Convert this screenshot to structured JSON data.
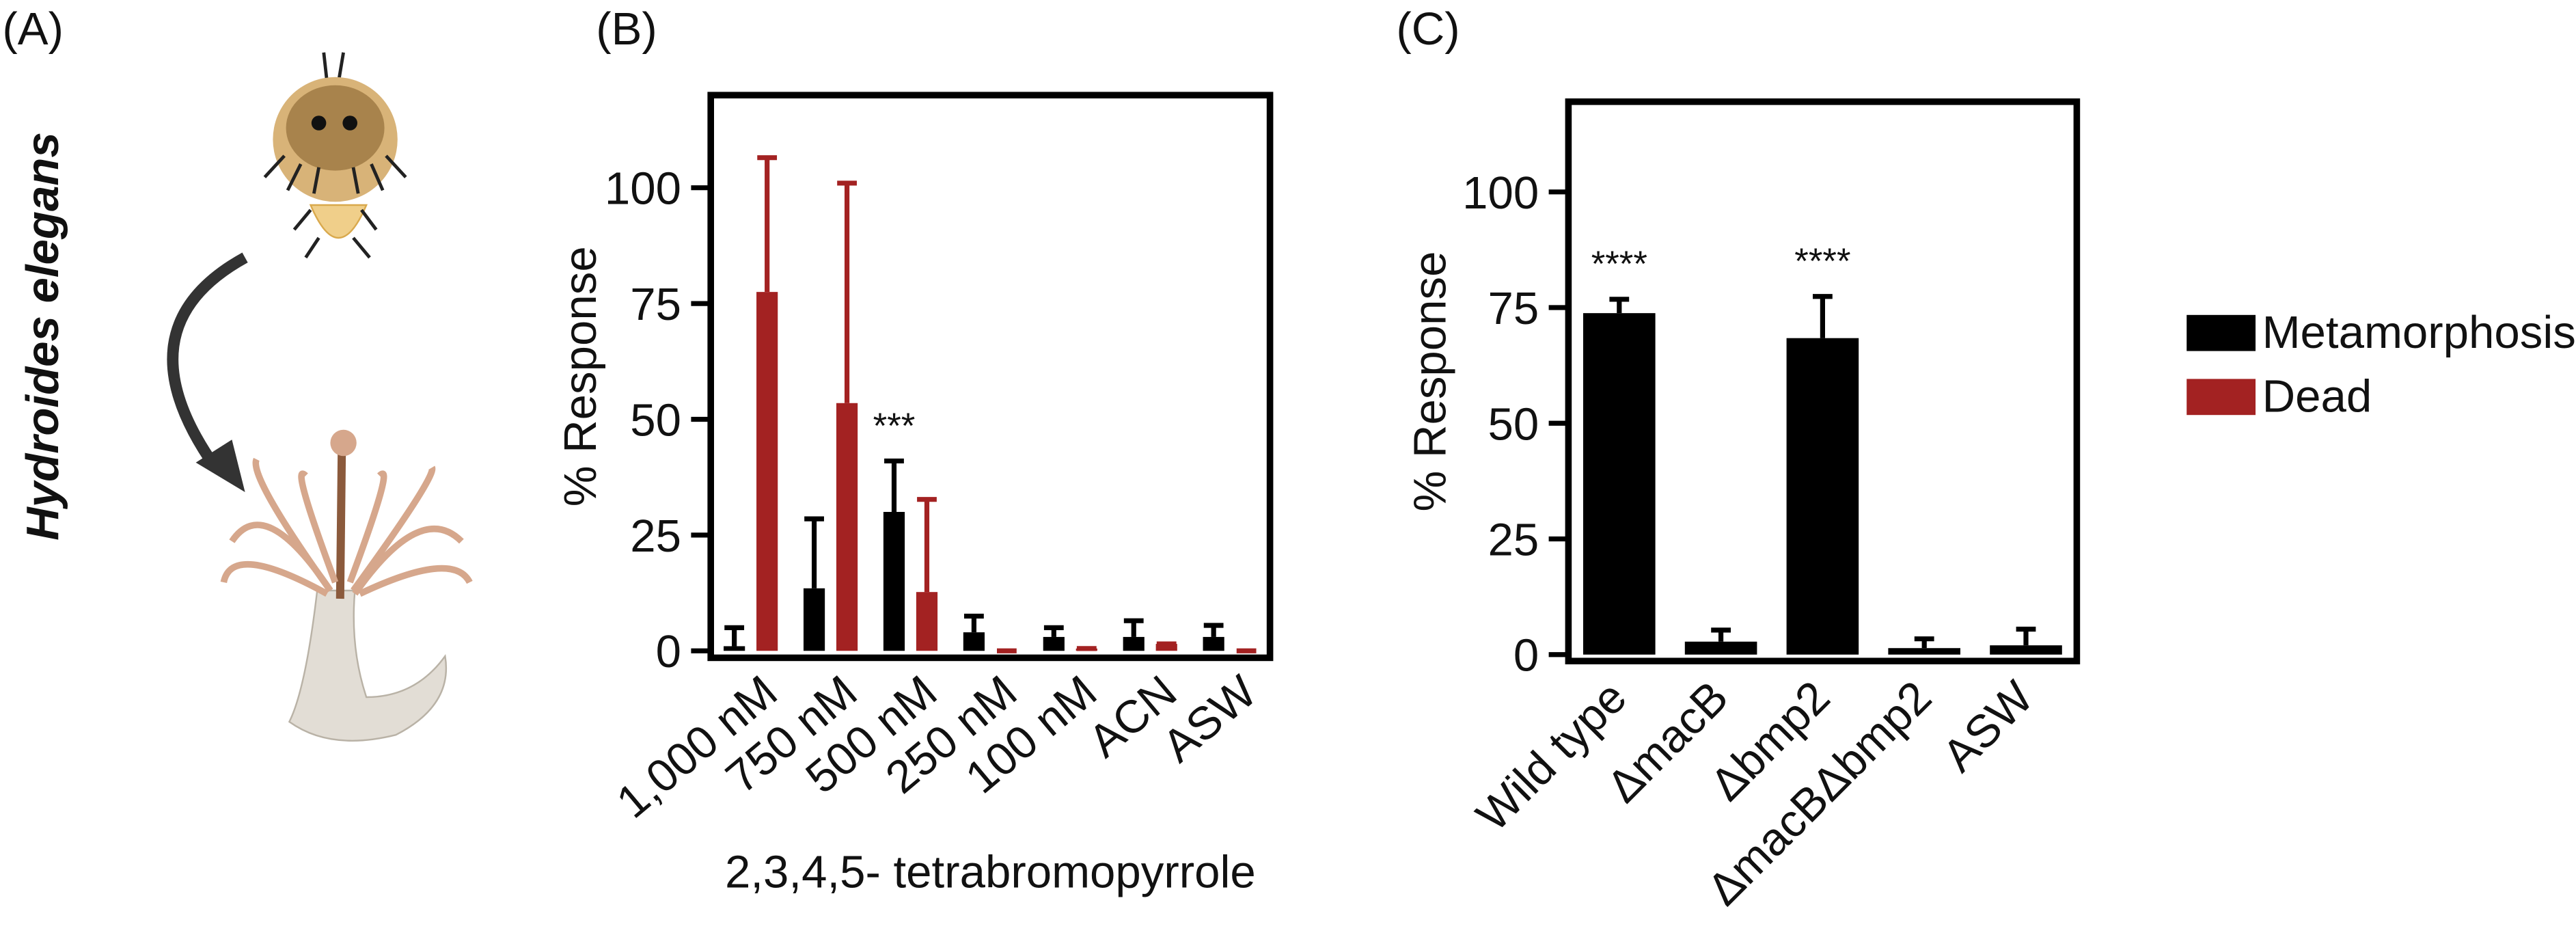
{
  "panel_labels": [
    "(A)",
    "(B)",
    "(C)"
  ],
  "organism": "Hydroides elegans",
  "chart_data": [
    {
      "type": "bar",
      "xlabel": "2,3,4,5- tetrabromopyrrole",
      "ylabel": "% Response",
      "categories": [
        "1,000 nM",
        "750 nM",
        "500 nM",
        "250 nM",
        "100 nM",
        "ACN",
        "ASW"
      ],
      "series": [
        {
          "name": "Metamorphosis",
          "color": "#000000",
          "values": [
            1,
            13.5,
            30,
            4,
            3,
            3,
            3
          ],
          "errors": [
            4,
            15,
            11,
            3.5,
            2,
            3.5,
            2.5
          ]
        },
        {
          "name": "Dead",
          "color": "#a32222",
          "values": [
            77.5,
            53.5,
            12.7,
            0,
            0.5,
            1.5,
            0
          ],
          "errors": [
            29,
            47.5,
            20,
            0,
            0,
            0,
            0
          ]
        }
      ],
      "annotations": [
        {
          "text": "***",
          "category": "500 nM"
        }
      ],
      "ylim": [
        -1.5,
        120
      ],
      "yticks": [
        0,
        25,
        50,
        75,
        100
      ]
    },
    {
      "type": "bar",
      "ylabel": "% Response",
      "categories": [
        "Wild type",
        "ΔmacB",
        "Δbmp2",
        "ΔmacBΔbmp2",
        "ASW"
      ],
      "series": [
        {
          "name": "Metamorphosis",
          "color": "#000000",
          "values": [
            73.8,
            2.8,
            68.4,
            1.4,
            2
          ],
          "errors": [
            3,
            2.5,
            9,
            2,
            3.5
          ]
        }
      ],
      "annotations": [
        {
          "text": "****",
          "category": "Wild type"
        },
        {
          "text": "****",
          "category": "Δbmp2"
        }
      ],
      "ylim": [
        -1.4,
        119.5
      ],
      "yticks": [
        0,
        25,
        50,
        75,
        100
      ]
    }
  ]
}
